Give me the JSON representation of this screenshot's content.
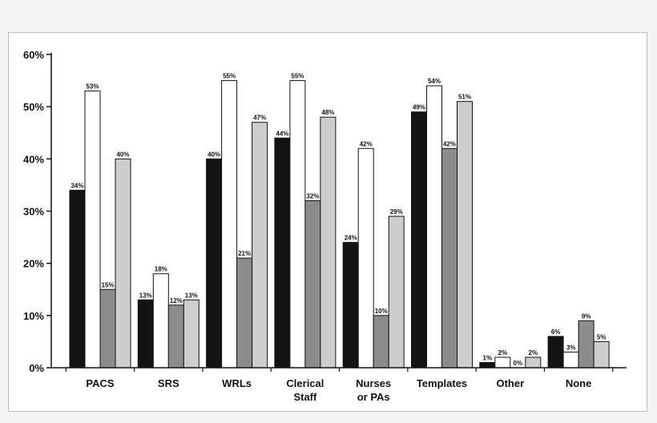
{
  "chart_data": {
    "type": "bar",
    "categories": [
      [
        "PACS"
      ],
      [
        "SRS"
      ],
      [
        "WRLs"
      ],
      [
        "Clerical",
        "Staff"
      ],
      [
        "Nurses",
        "or PAs"
      ],
      [
        "Templates"
      ],
      [
        "Other"
      ],
      [
        "None"
      ]
    ],
    "series": [
      {
        "color": "#141414",
        "values": [
          34,
          13,
          40,
          44,
          24,
          49,
          1,
          6
        ]
      },
      {
        "color": "#ffffff",
        "values": [
          53,
          18,
          55,
          55,
          42,
          54,
          2,
          3
        ]
      },
      {
        "color": "#8c8c8c",
        "values": [
          15,
          12,
          21,
          32,
          10,
          42,
          0,
          9
        ]
      },
      {
        "color": "#cdcdcd",
        "values": [
          40,
          13,
          47,
          48,
          29,
          51,
          2,
          5
        ]
      }
    ],
    "data_labels": [
      [
        "34%",
        "13%",
        "40%",
        "44%",
        "24%",
        "49%",
        "1%",
        "6%"
      ],
      [
        "53%",
        "18%",
        "55%",
        "55%",
        "42%",
        "54%",
        "2%",
        "3%"
      ],
      [
        "15%",
        "12%",
        "21%",
        "32%",
        "10%",
        "42%",
        "0%",
        "9%"
      ],
      [
        "40%",
        "13%",
        "47%",
        "48%",
        "29%",
        "51%",
        "2%",
        "5%"
      ]
    ],
    "y_ticks": [
      0,
      10,
      20,
      30,
      40,
      50,
      60
    ],
    "y_tick_labels": [
      "0%",
      "10%",
      "20%",
      "30%",
      "40%",
      "50%",
      "60%"
    ],
    "ylim": [
      0,
      60
    ],
    "grid": false,
    "legend": "none",
    "title": "",
    "xlabel": "",
    "ylabel": ""
  }
}
